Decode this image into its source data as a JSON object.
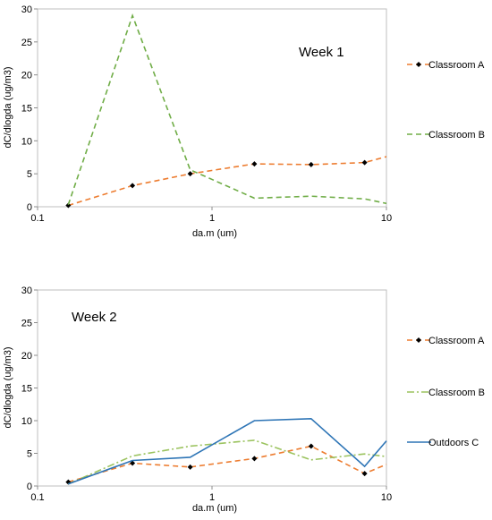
{
  "chart_data": [
    {
      "type": "line",
      "annotation": "Week 1",
      "xlabel": "da.m (um)",
      "ylabel": "dC/dlogda (ug/m3)",
      "xscale": "log",
      "xlim": [
        0.1,
        10
      ],
      "ylim": [
        0,
        30
      ],
      "xticks": [
        "0.1",
        "1",
        "10"
      ],
      "yticks": [
        "0",
        "5",
        "10",
        "15",
        "20",
        "25",
        "30"
      ],
      "legend_position": "right",
      "series": [
        {
          "name": "Classroom A",
          "color": "#ed7d31",
          "style": "dashed",
          "markers": true,
          "x": [
            0.15,
            0.35,
            0.75,
            1.75,
            3.7,
            7.5,
            10
          ],
          "y": [
            0.2,
            3.2,
            5.0,
            6.5,
            6.4,
            6.7,
            7.6
          ]
        },
        {
          "name": "Classroom B",
          "color": "#70ad47",
          "style": "dashed",
          "markers": false,
          "x": [
            0.15,
            0.35,
            0.75,
            1.75,
            3.7,
            7.5,
            10
          ],
          "y": [
            0.3,
            29.0,
            5.6,
            1.3,
            1.6,
            1.2,
            0.5
          ]
        }
      ]
    },
    {
      "type": "line",
      "annotation": "Week 2",
      "xlabel": "da.m (um)",
      "ylabel": "dC/dlogda (ug/m3)",
      "xscale": "log",
      "xlim": [
        0.1,
        10
      ],
      "ylim": [
        0,
        30
      ],
      "xticks": [
        "0.1",
        "1",
        "10"
      ],
      "yticks": [
        "0",
        "5",
        "10",
        "15",
        "20",
        "25",
        "30"
      ],
      "legend_position": "right",
      "series": [
        {
          "name": "Classroom A",
          "color": "#ed7d31",
          "style": "dashed",
          "markers": true,
          "x": [
            0.15,
            0.35,
            0.75,
            1.75,
            3.7,
            7.5,
            10
          ],
          "y": [
            0.6,
            3.5,
            2.9,
            4.2,
            6.1,
            1.9,
            3.3
          ]
        },
        {
          "name": "Classroom B",
          "color": "#9bc35f",
          "style": "dashdot",
          "markers": false,
          "x": [
            0.15,
            0.35,
            0.75,
            1.75,
            3.7,
            7.5,
            10
          ],
          "y": [
            0.3,
            4.6,
            6.1,
            7.0,
            4.0,
            4.9,
            4.5
          ]
        },
        {
          "name": "Outdoors C",
          "color": "#2e75b6",
          "style": "solid",
          "markers": false,
          "x": [
            0.15,
            0.35,
            0.75,
            1.75,
            3.7,
            7.5,
            10
          ],
          "y": [
            0.3,
            3.9,
            4.4,
            10.0,
            10.3,
            3.0,
            6.9
          ]
        }
      ]
    }
  ]
}
